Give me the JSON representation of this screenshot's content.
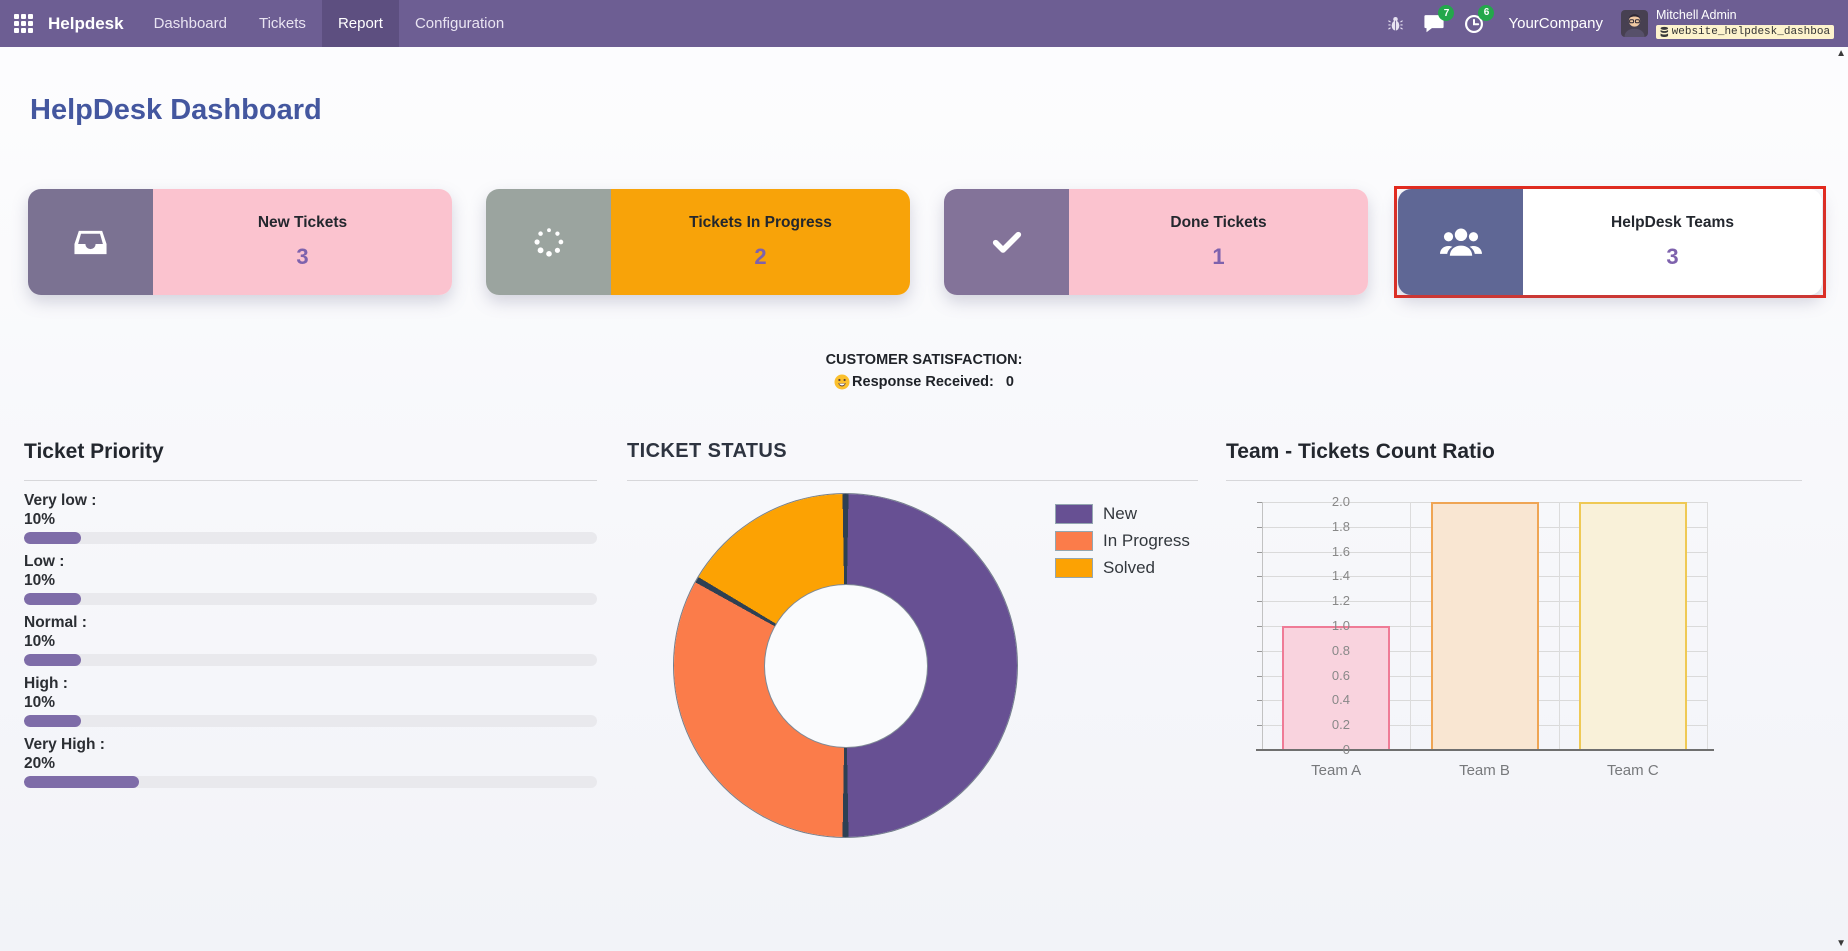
{
  "navbar": {
    "app_name": "Helpdesk",
    "menu_items": [
      {
        "label": "Dashboard",
        "active": false
      },
      {
        "label": "Tickets",
        "active": false
      },
      {
        "label": "Report",
        "active": true
      },
      {
        "label": "Configuration",
        "active": false
      }
    ],
    "systray": {
      "messages_badge": "7",
      "activities_badge": "6",
      "company_name": "YourCompany",
      "user_name": "Mitchell Admin",
      "database_name": "website_helpdesk_dashboa…"
    }
  },
  "page": {
    "title": "HelpDesk Dashboard"
  },
  "kpi_cards": [
    {
      "title": "New Tickets",
      "count": "3",
      "icon": "inbox-icon",
      "icon_bg": "#7b7292",
      "body_bg": "#fbc3cf",
      "selected": false
    },
    {
      "title": "Tickets In Progress",
      "count": "2",
      "icon": "spinner-icon",
      "icon_bg": "#9ba49f",
      "body_bg": "#f8a309",
      "selected": false
    },
    {
      "title": "Done Tickets",
      "count": "1",
      "icon": "check-icon",
      "icon_bg": "#837399",
      "body_bg": "#fbc3cf",
      "selected": false
    },
    {
      "title": "HelpDesk Teams",
      "count": "3",
      "icon": "users-icon",
      "icon_bg": "#5f6795",
      "body_bg": "#ffffff",
      "selected": true
    }
  ],
  "satisfaction": {
    "heading": "CUSTOMER SATISFACTION:",
    "emoji": "😃",
    "label": "Response Received:",
    "value": "0"
  },
  "ticket_priority": {
    "title": "Ticket Priority",
    "fill_color": "#7e6ca8",
    "track_color": "#e9e9ed",
    "items": [
      {
        "label": "Very low :",
        "pct_label": "10%",
        "value": 10
      },
      {
        "label": "Low :",
        "pct_label": "10%",
        "value": 10
      },
      {
        "label": "Normal :",
        "pct_label": "10%",
        "value": 10
      },
      {
        "label": "High :",
        "pct_label": "10%",
        "value": 10
      },
      {
        "label": "Very High :",
        "pct_label": "20%",
        "value": 20
      }
    ]
  },
  "chart_data": [
    {
      "type": "pie",
      "title": "TICKET STATUS",
      "labels": [
        "New",
        "In Progress",
        "Solved"
      ],
      "values": [
        3,
        2,
        1
      ],
      "percentages": [
        50,
        33.3,
        16.7
      ],
      "colors": [
        "#675093",
        "#fb7c4a",
        "#fca203"
      ],
      "donut": true,
      "legend_position": "right",
      "start_angle_deg": 0,
      "direction": "clockwise"
    },
    {
      "type": "bar",
      "title": "Team - Tickets Count Ratio",
      "categories": [
        "Team A",
        "Team B",
        "Team C"
      ],
      "values": [
        1,
        2,
        2
      ],
      "bar_fill_colors": [
        "#f9d3de",
        "#f9e6d2",
        "#f9f1d9"
      ],
      "bar_border_colors": [
        "#ef7b96",
        "#efa554",
        "#efc954"
      ],
      "xlabel": "",
      "ylabel": "",
      "ylim": [
        0,
        2
      ],
      "ytick_labels": [
        "0",
        "0.2",
        "0.4",
        "0.6",
        "0.8",
        "1.0",
        "1.2",
        "1.4",
        "1.6",
        "1.8",
        "2.0"
      ],
      "grid": true,
      "legend_position": "none"
    }
  ]
}
